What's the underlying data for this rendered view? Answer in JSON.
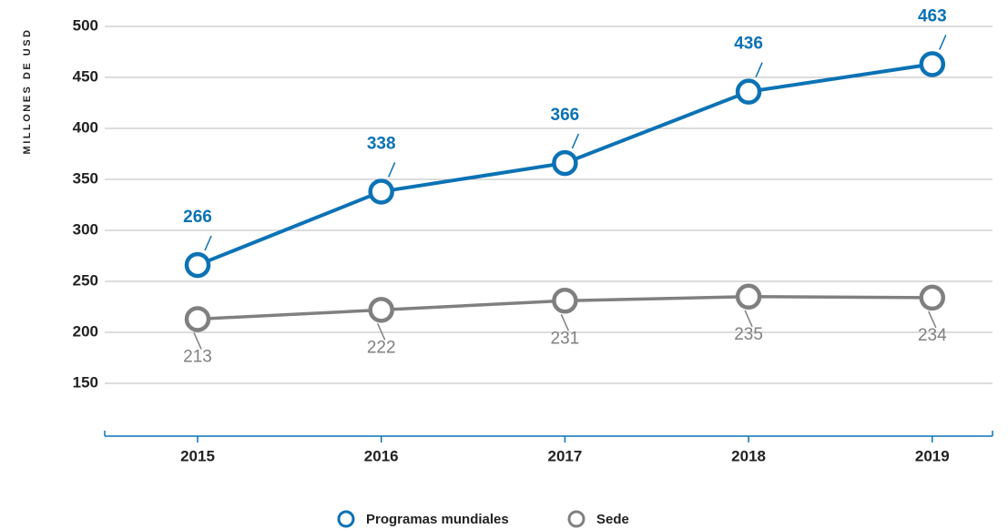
{
  "chart_data": {
    "type": "line",
    "y_axis_label": "MILLONES DE USD",
    "categories": [
      "2015",
      "2016",
      "2017",
      "2018",
      "2019"
    ],
    "series": [
      {
        "name": "Programas mundiales",
        "color": "#0b72b5",
        "values": [
          266,
          338,
          366,
          436,
          463
        ]
      },
      {
        "name": "Sede",
        "color": "#808080",
        "values": [
          213,
          222,
          231,
          235,
          234
        ]
      }
    ],
    "ylim": [
      100,
      500
    ],
    "yticks": [
      150,
      200,
      250,
      300,
      350,
      400,
      450,
      500
    ],
    "grid": true,
    "legend": "bottom"
  }
}
